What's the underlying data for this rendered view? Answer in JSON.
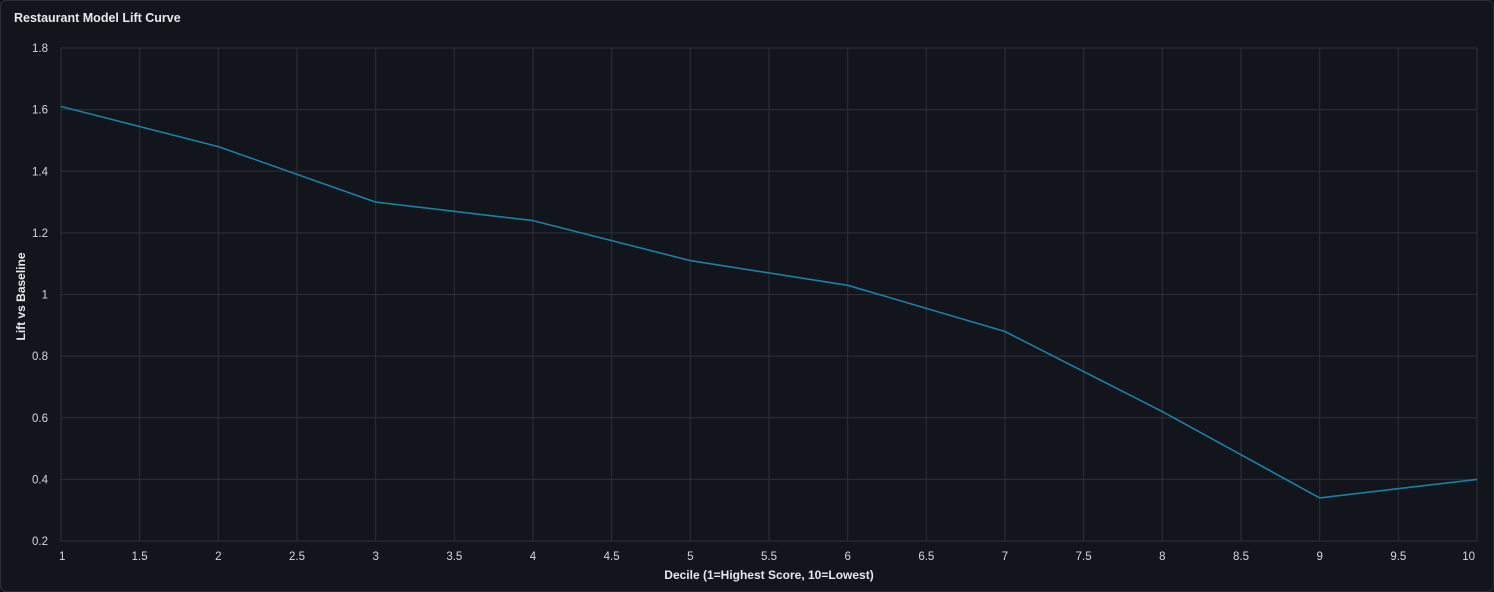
{
  "panel": {
    "title": "Restaurant Model Lift Curve"
  },
  "colors": {
    "background": "#12161c",
    "grid": "#2c3038",
    "line": "#1b7fa8",
    "text": "#d4d7dc"
  },
  "chart_data": {
    "type": "line",
    "title": "Restaurant Model Lift Curve",
    "xlabel": "Decile (1=Highest Score, 10=Lowest)",
    "ylabel": "Lift vs Baseline",
    "xlim": [
      1,
      10
    ],
    "ylim": [
      0.2,
      1.8
    ],
    "grid": true,
    "x_ticks": [
      1,
      1.5,
      2,
      2.5,
      3,
      3.5,
      4,
      4.5,
      5,
      5.5,
      6,
      6.5,
      7,
      7.5,
      8,
      8.5,
      9,
      9.5,
      10
    ],
    "x_tick_labels": [
      "1",
      "1.5",
      "2",
      "2.5",
      "3",
      "3.5",
      "4",
      "4.5",
      "5",
      "5.5",
      "6",
      "6.5",
      "7",
      "7.5",
      "8",
      "8.5",
      "9",
      "9.5",
      "10"
    ],
    "y_ticks": [
      0.2,
      0.4,
      0.6,
      0.8,
      1,
      1.2,
      1.4,
      1.6,
      1.8
    ],
    "y_tick_labels": [
      "0.2",
      "0.4",
      "0.6",
      "0.8",
      "1",
      "1.2",
      "1.4",
      "1.6",
      "1.8"
    ],
    "series": [
      {
        "x": [
          1,
          2,
          3,
          4,
          5,
          6,
          7,
          8,
          9,
          10
        ],
        "values": [
          1.61,
          1.48,
          1.3,
          1.24,
          1.11,
          1.03,
          0.88,
          0.62,
          0.34,
          0.4
        ]
      }
    ]
  }
}
